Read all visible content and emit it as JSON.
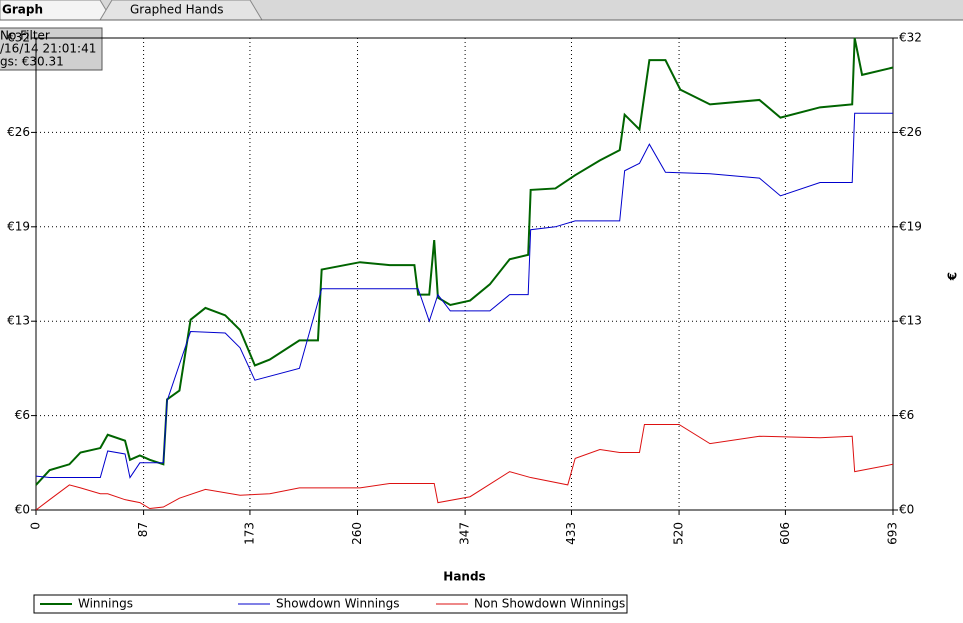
{
  "tabs": [
    "Graph",
    "Graphed Hands"
  ],
  "info": [
    "No Filter",
    "/16/14 21:01:41",
    "gs: €30.31"
  ],
  "chart_data": {
    "type": "line",
    "xlabel": "Hands",
    "y2label": "€",
    "xlim": [
      0,
      693
    ],
    "xticks": [
      0,
      87,
      173,
      260,
      347,
      433,
      520,
      606,
      693
    ],
    "ylim": [
      0,
      32
    ],
    "yticks": [
      {
        "value": 0,
        "label": "€0"
      },
      {
        "value": 6.4,
        "label": "€6"
      },
      {
        "value": 12.8,
        "label": "€13"
      },
      {
        "value": 19.2,
        "label": "€19"
      },
      {
        "value": 25.6,
        "label": "€26"
      },
      {
        "value": 32,
        "label": "€32"
      }
    ],
    "grid": true,
    "series": [
      {
        "name": "Winnings",
        "color": "#006400",
        "x": [
          0,
          11,
          27,
          36,
          52,
          58,
          72,
          76,
          84,
          92,
          103,
          106,
          116,
          125,
          137,
          153,
          165,
          177,
          189,
          213,
          228,
          231,
          262,
          286,
          306,
          309,
          318,
          322,
          325,
          335,
          351,
          367,
          383,
          398,
          400,
          420,
          436,
          456,
          472,
          476,
          488,
          496,
          509,
          521,
          545,
          585,
          602,
          634,
          660,
          662,
          668,
          693
        ],
        "values": [
          1.7,
          2.7,
          3.1,
          3.9,
          4.2,
          5.1,
          4.7,
          3.4,
          3.7,
          3.4,
          3.1,
          7.5,
          8.1,
          12.9,
          13.7,
          13.2,
          12.2,
          9.8,
          10.2,
          11.5,
          11.5,
          16.3,
          16.8,
          16.6,
          16.6,
          14.6,
          14.6,
          18.3,
          14.4,
          13.9,
          14.2,
          15.3,
          17.0,
          17.3,
          21.7,
          21.8,
          22.7,
          23.7,
          24.4,
          26.8,
          25.8,
          30.5,
          30.5,
          28.5,
          27.5,
          27.8,
          26.6,
          27.3,
          27.5,
          32.0,
          29.5,
          30.0
        ]
      },
      {
        "name": "Showdown Winnings",
        "color": "#0000cd",
        "x": [
          0,
          11,
          52,
          58,
          72,
          76,
          84,
          103,
          106,
          125,
          153,
          165,
          177,
          213,
          231,
          309,
          318,
          325,
          335,
          367,
          383,
          398,
          400,
          420,
          436,
          472,
          476,
          488,
          496,
          509,
          545,
          585,
          602,
          634,
          660,
          662,
          693
        ],
        "values": [
          2.3,
          2.2,
          2.2,
          4.0,
          3.8,
          2.2,
          3.2,
          3.2,
          7.4,
          12.1,
          12.0,
          11.0,
          8.8,
          9.6,
          15.0,
          15.0,
          12.8,
          14.6,
          13.5,
          13.5,
          14.6,
          14.6,
          19.0,
          19.2,
          19.6,
          19.6,
          23.0,
          23.5,
          24.8,
          22.9,
          22.8,
          22.5,
          21.3,
          22.2,
          22.2,
          26.9,
          26.9
        ]
      },
      {
        "name": "Non Showdown Winnings",
        "color": "#dd1111",
        "x": [
          0,
          11,
          27,
          36,
          52,
          58,
          72,
          84,
          92,
          103,
          116,
          137,
          165,
          189,
          213,
          262,
          286,
          309,
          322,
          325,
          351,
          383,
          400,
          430,
          436,
          456,
          472,
          488,
          492,
          520,
          545,
          585,
          634,
          660,
          662,
          693
        ],
        "values": [
          0,
          0.7,
          1.7,
          1.5,
          1.1,
          1.1,
          0.7,
          0.5,
          0.1,
          0.2,
          0.8,
          1.4,
          1.0,
          1.1,
          1.5,
          1.5,
          1.8,
          1.8,
          1.8,
          0.5,
          0.9,
          2.6,
          2.2,
          1.7,
          3.5,
          4.1,
          3.9,
          3.9,
          5.8,
          5.8,
          4.5,
          5.0,
          4.9,
          5.0,
          2.6,
          3.1
        ]
      }
    ]
  }
}
